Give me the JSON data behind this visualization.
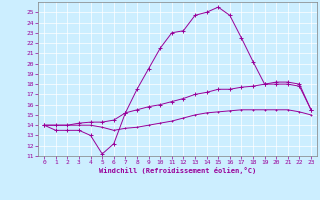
{
  "xlabel": "Windchill (Refroidissement éolien,°C)",
  "background_color": "#cceeff",
  "line_color": "#990099",
  "x_values": [
    0,
    1,
    2,
    3,
    4,
    5,
    6,
    7,
    8,
    9,
    10,
    11,
    12,
    13,
    14,
    15,
    16,
    17,
    18,
    19,
    20,
    21,
    22,
    23
  ],
  "curve_main": [
    14.0,
    13.5,
    13.5,
    13.5,
    13.0,
    11.2,
    12.2,
    15.2,
    17.5,
    19.5,
    21.5,
    23.0,
    23.2,
    24.7,
    25.0,
    25.5,
    24.7,
    22.5,
    20.2,
    18.0,
    18.0,
    18.0,
    17.8,
    15.5
  ],
  "curve_upper": [
    14.0,
    14.0,
    14.0,
    14.2,
    14.3,
    14.3,
    14.5,
    15.2,
    15.5,
    15.8,
    16.0,
    16.3,
    16.6,
    17.0,
    17.2,
    17.5,
    17.5,
    17.7,
    17.8,
    18.0,
    18.2,
    18.2,
    18.0,
    15.5
  ],
  "curve_lower": [
    14.0,
    14.0,
    14.0,
    14.0,
    14.0,
    13.8,
    13.5,
    13.7,
    13.8,
    14.0,
    14.2,
    14.4,
    14.7,
    15.0,
    15.2,
    15.3,
    15.4,
    15.5,
    15.5,
    15.5,
    15.5,
    15.5,
    15.3,
    15.0
  ],
  "ylim": [
    11,
    26
  ],
  "xlim": [
    -0.5,
    23.5
  ],
  "yticks": [
    11,
    12,
    13,
    14,
    15,
    16,
    17,
    18,
    19,
    20,
    21,
    22,
    23,
    24,
    25
  ],
  "xticks": [
    0,
    1,
    2,
    3,
    4,
    5,
    6,
    7,
    8,
    9,
    10,
    11,
    12,
    13,
    14,
    15,
    16,
    17,
    18,
    19,
    20,
    21,
    22,
    23
  ]
}
